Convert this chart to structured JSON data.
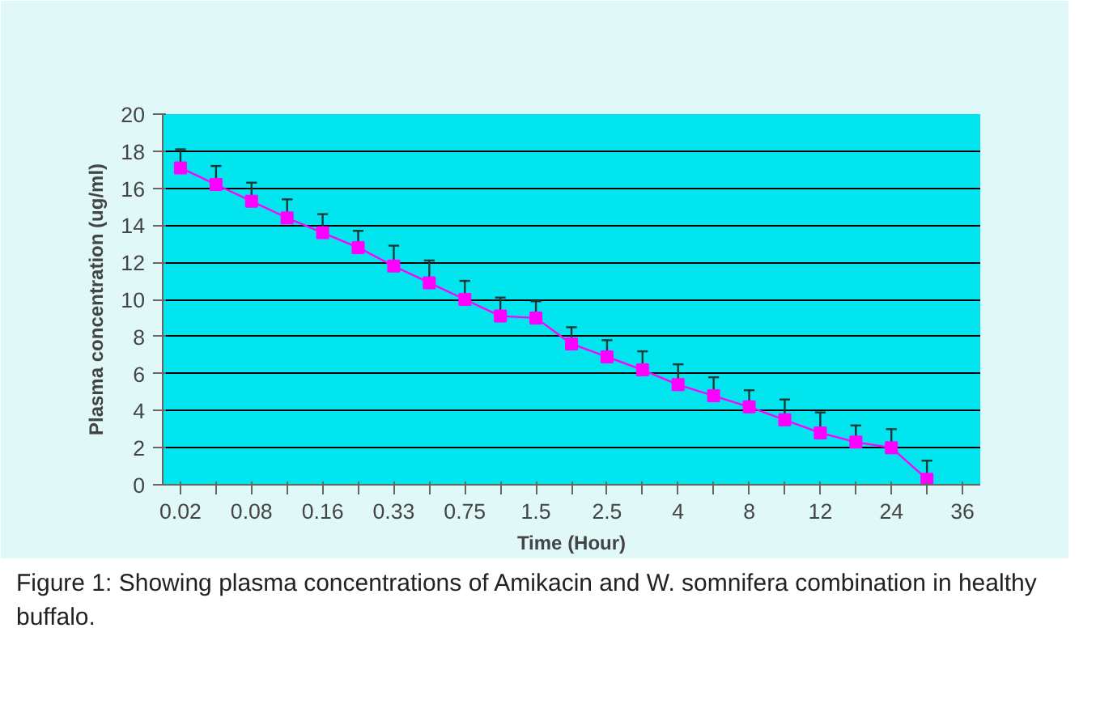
{
  "chart_data": {
    "type": "line",
    "xlabel": "Time (Hour)",
    "ylabel": "Plasma concentration (ug/ml)",
    "categories": [
      "0.02",
      null,
      "0.08",
      null,
      "0.16",
      null,
      "0.33",
      null,
      "0.75",
      null,
      "1.5",
      null,
      "2.5",
      null,
      "4",
      null,
      "8",
      null,
      "12",
      null,
      "24",
      null,
      "36"
    ],
    "series": [
      {
        "color": "#ff00ff",
        "values": [
          17.1,
          16.2,
          15.3,
          14.4,
          13.6,
          12.8,
          11.8,
          10.9,
          10.0,
          9.1,
          9.0,
          7.6,
          6.9,
          6.2,
          5.4,
          4.8,
          4.2,
          3.5,
          2.8,
          2.3,
          2.0,
          0.3,
          null
        ],
        "errors": [
          [
            17.1,
            18.1
          ],
          [
            16.2,
            17.2
          ],
          [
            15.3,
            16.3
          ],
          [
            14.4,
            15.4
          ],
          [
            13.6,
            14.6
          ],
          [
            12.8,
            13.7
          ],
          [
            11.8,
            12.9
          ],
          [
            10.9,
            12.1
          ],
          [
            10.0,
            11.0
          ],
          [
            9.1,
            10.1
          ],
          [
            9.0,
            9.9
          ],
          [
            7.6,
            8.5
          ],
          [
            6.9,
            7.8
          ],
          [
            6.2,
            7.2
          ],
          [
            5.4,
            6.5
          ],
          [
            4.8,
            5.8
          ],
          [
            4.2,
            5.1
          ],
          [
            3.5,
            4.6
          ],
          [
            2.8,
            3.9
          ],
          [
            2.3,
            3.2
          ],
          [
            2.0,
            3.0
          ],
          [
            0.3,
            1.3
          ],
          null
        ]
      }
    ],
    "ylim": [
      0,
      20
    ],
    "yticks": [
      0,
      2,
      4,
      6,
      8,
      10,
      12,
      14,
      16,
      18,
      20
    ],
    "grid": "y",
    "marker": "square",
    "line_style": "solid",
    "annotations": [
      "Figure 1: Showing plasma concentrations of Amikacin and W. somnifera combination in healthy buffalo."
    ]
  }
}
